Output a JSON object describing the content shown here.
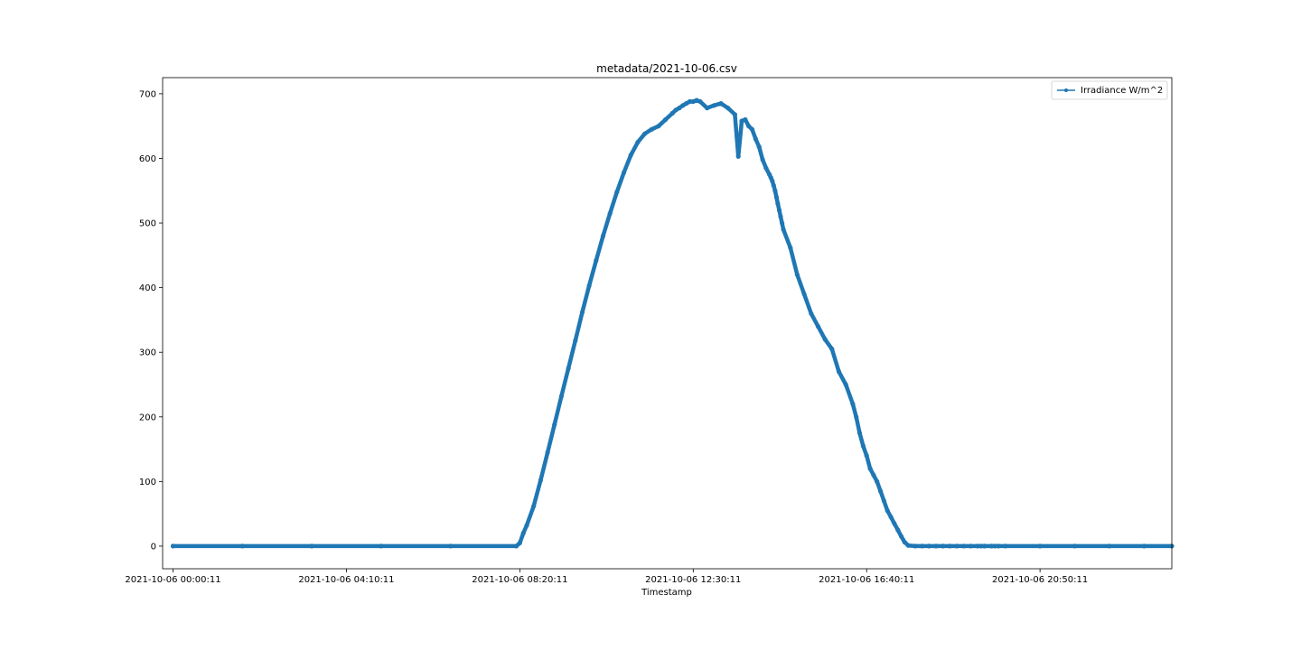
{
  "chart_data": {
    "type": "line",
    "title": "metadata/2021-10-06.csv",
    "xlabel": "Timestamp",
    "ylabel": "",
    "x_unit": "minutes since midnight",
    "xlim": [
      -15,
      1440
    ],
    "ylim": [
      -35,
      725
    ],
    "x_ticks": [
      {
        "value": 0,
        "label": "2021-10-06 00:00:11"
      },
      {
        "value": 250,
        "label": "2021-10-06 04:10:11"
      },
      {
        "value": 500,
        "label": "2021-10-06 08:20:11"
      },
      {
        "value": 750,
        "label": "2021-10-06 12:30:11"
      },
      {
        "value": 1000,
        "label": "2021-10-06 16:40:11"
      },
      {
        "value": 1250,
        "label": "2021-10-06 20:50:11"
      },
      {
        "value": 1500,
        "label": ""
      }
    ],
    "y_ticks": [
      0,
      100,
      200,
      300,
      400,
      500,
      600,
      700
    ],
    "legend": {
      "position": "top-right",
      "entries": [
        "Irradiance W/m^2"
      ]
    },
    "colors": {
      "series": "#1f77b4"
    },
    "series": [
      {
        "name": "Irradiance W/m^2",
        "x": [
          0,
          100,
          200,
          300,
          400,
          495,
          500,
          505,
          510,
          520,
          530,
          540,
          550,
          560,
          570,
          580,
          590,
          600,
          610,
          620,
          630,
          640,
          650,
          660,
          670,
          680,
          690,
          700,
          710,
          720,
          725,
          730,
          735,
          740,
          745,
          750,
          755,
          760,
          770,
          780,
          790,
          800,
          810,
          815,
          820,
          825,
          830,
          835,
          840,
          845,
          850,
          855,
          860,
          862,
          864,
          866,
          868,
          870,
          872,
          874,
          876,
          878,
          880,
          890,
          900,
          910,
          920,
          930,
          940,
          950,
          960,
          970,
          980,
          985,
          990,
          995,
          1000,
          1005,
          1010,
          1015,
          1020,
          1025,
          1030,
          1035,
          1040,
          1045,
          1050,
          1055,
          1060,
          1070,
          1080,
          1090,
          1100,
          1110,
          1120,
          1130,
          1140,
          1150,
          1160,
          1165,
          1170,
          1180,
          1185,
          1190,
          1200,
          1250,
          1300,
          1350,
          1400,
          1440
        ],
        "y": [
          0,
          0,
          0,
          0,
          0,
          0,
          5,
          20,
          32,
          62,
          102,
          145,
          188,
          232,
          275,
          318,
          362,
          403,
          442,
          480,
          515,
          548,
          578,
          605,
          625,
          638,
          645,
          650,
          660,
          670,
          675,
          678,
          682,
          685,
          688,
          688,
          690,
          688,
          678,
          682,
          685,
          678,
          668,
          603,
          658,
          660,
          650,
          645,
          630,
          618,
          598,
          585,
          575,
          570,
          565,
          558,
          550,
          540,
          530,
          520,
          510,
          500,
          490,
          462,
          420,
          390,
          360,
          340,
          320,
          305,
          270,
          250,
          220,
          200,
          175,
          155,
          140,
          120,
          110,
          100,
          85,
          70,
          55,
          45,
          35,
          25,
          15,
          6,
          1,
          0,
          0,
          0,
          0,
          0,
          0,
          0,
          0,
          0,
          0,
          0,
          0,
          0,
          0,
          0,
          0,
          0,
          0,
          0,
          0,
          0
        ]
      }
    ]
  }
}
